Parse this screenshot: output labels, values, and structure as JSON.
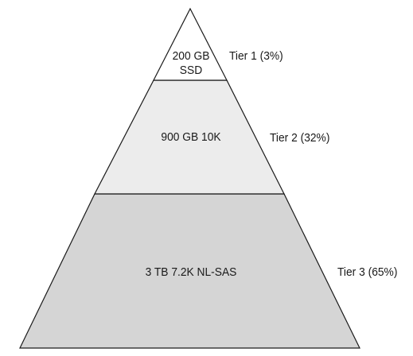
{
  "tiers": [
    {
      "tier_label": "Tier 1 (3%)",
      "media_lines": [
        "200 GB",
        "SSD"
      ],
      "fill": "#ffffff"
    },
    {
      "tier_label": "Tier 2 (32%)",
      "media_lines": [
        "900 GB 10K"
      ],
      "fill": "#ececec"
    },
    {
      "tier_label": "Tier 3 (65%)",
      "media_lines": [
        "3 TB 7.2K NL-SAS"
      ],
      "fill": "#d5d5d5"
    }
  ],
  "stroke_color": "#1a1a1a"
}
